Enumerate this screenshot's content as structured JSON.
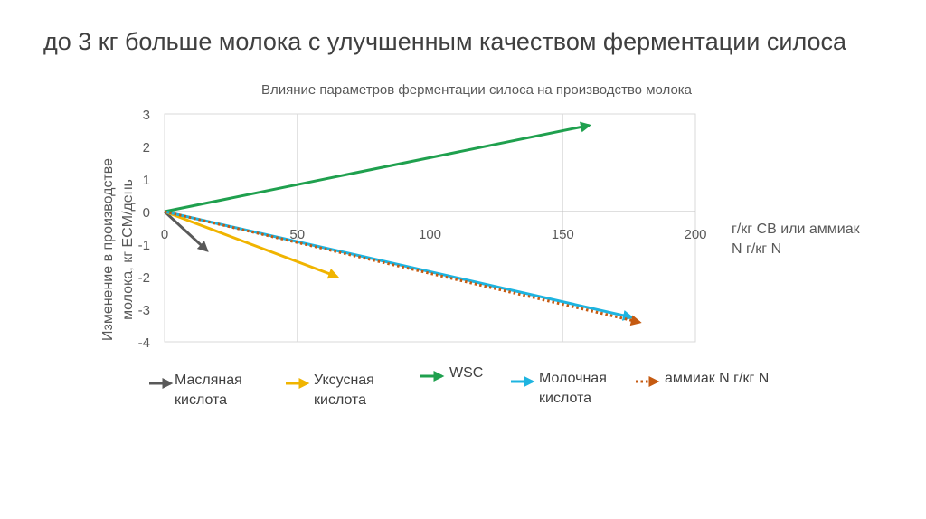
{
  "slide": {
    "title": "до 3 кг больше молока с улучшенным качеством ферментации силоса"
  },
  "chart_data": {
    "type": "line",
    "title": "Влияние параметров ферментации силоса на производство молока",
    "ylabel": "Изменение в производстве молока, кг ECM/день",
    "xlabel": "г/кг СВ или аммиак N г/кг N",
    "xlabel_lines": [
      "г/кг СВ или аммиак",
      "N г/кг N"
    ],
    "ylabel_lines": [
      "Изменение в производстве",
      "молока, кг ECM/день"
    ],
    "xlim": [
      0,
      200
    ],
    "ylim": [
      -4,
      3
    ],
    "x_ticks": [
      "0",
      "50",
      "100",
      "150",
      "200"
    ],
    "x_tick_values": [
      0,
      50,
      100,
      150,
      200
    ],
    "y_ticks": [
      "3",
      "2",
      "1",
      "0",
      "-1",
      "-2",
      "-3",
      "-4"
    ],
    "y_tick_values": [
      3,
      2,
      1,
      0,
      -1,
      -2,
      -3,
      -4
    ],
    "grid": "vertical",
    "legend_position": "bottom",
    "series": [
      {
        "name": "Масляная кислота",
        "legend_lines": [
          "Масляная",
          "кислота"
        ],
        "color": "#595959",
        "dash": "solid",
        "x": [
          0,
          16
        ],
        "y": [
          0,
          -1.2
        ]
      },
      {
        "name": "Уксусная кислота",
        "legend_lines": [
          "Уксусная",
          "кислота"
        ],
        "color": "#F0B400",
        "dash": "solid",
        "x": [
          0,
          65
        ],
        "y": [
          0,
          -2.0
        ]
      },
      {
        "name": "WSC",
        "legend_lines": [
          "WSC"
        ],
        "color": "#1FA04E",
        "dash": "solid",
        "x": [
          0,
          160
        ],
        "y": [
          0,
          2.65
        ]
      },
      {
        "name": "Молочная кислота",
        "legend_lines": [
          "Молочная",
          "кислота"
        ],
        "color": "#1EB4E0",
        "dash": "solid",
        "x": [
          0,
          176
        ],
        "y": [
          0,
          -3.25
        ]
      },
      {
        "name": "аммиак N г/кг N",
        "legend_lines": [
          "аммиак N г/кг N"
        ],
        "color": "#C55A11",
        "dash": "dotted",
        "x": [
          0,
          179
        ],
        "y": [
          0,
          -3.4
        ]
      }
    ]
  }
}
